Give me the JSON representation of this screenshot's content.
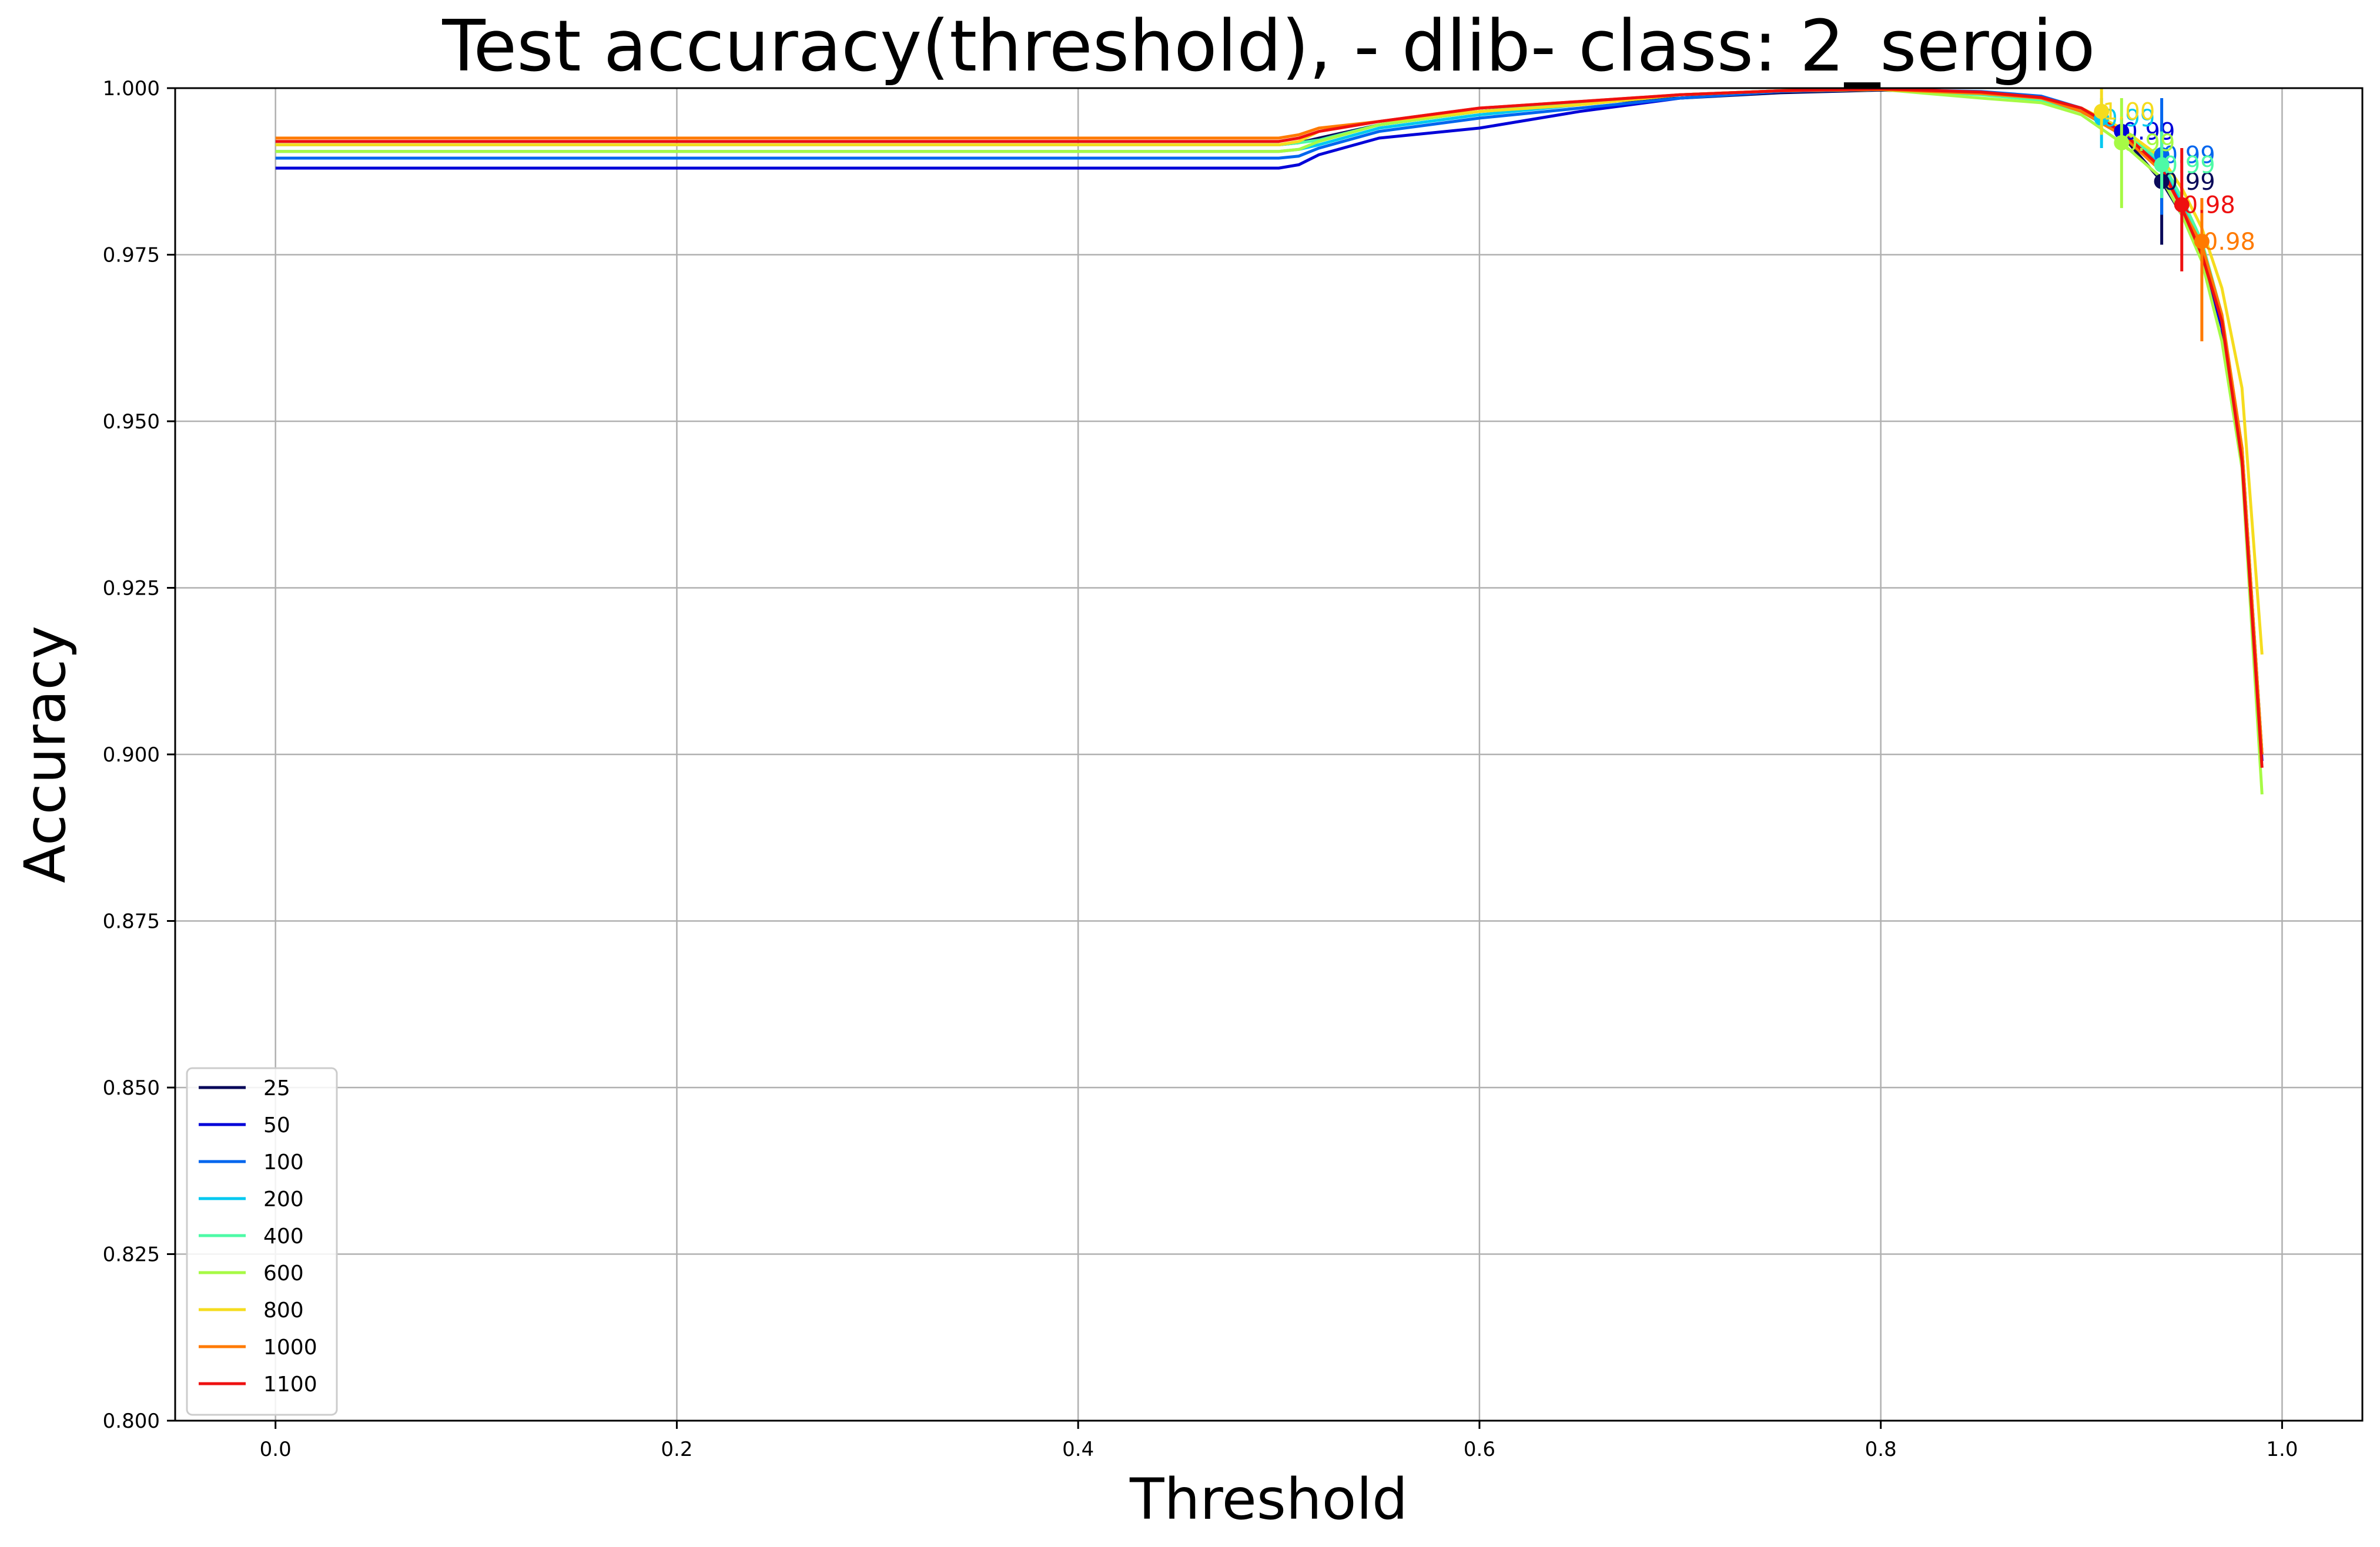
{
  "chart_data": {
    "type": "line",
    "title": "Test accuracy(threshold), - dlib-  class: 2_sergio",
    "xlabel": "Threshold",
    "ylabel": "Accuracy",
    "xlim": [
      -0.05,
      1.04
    ],
    "ylim": [
      0.8,
      1.0
    ],
    "xticks": [
      0.0,
      0.2,
      0.4,
      0.6,
      0.8,
      1.0
    ],
    "xtick_labels": [
      "0.0",
      "0.2",
      "0.4",
      "0.6",
      "0.8",
      "1.0"
    ],
    "yticks": [
      0.8,
      0.825,
      0.85,
      0.875,
      0.9,
      0.925,
      0.95,
      0.975,
      1.0
    ],
    "ytick_labels": [
      "0.800",
      "0.825",
      "0.850",
      "0.875",
      "0.900",
      "0.925",
      "0.950",
      "0.975",
      "1.000"
    ],
    "grid": true,
    "legend_position": "lower-left",
    "x": [
      0.0,
      0.5,
      0.51,
      0.52,
      0.55,
      0.6,
      0.65,
      0.7,
      0.75,
      0.8,
      0.85,
      0.88,
      0.9,
      0.92,
      0.94,
      0.95,
      0.96,
      0.97,
      0.98,
      0.99
    ],
    "series": [
      {
        "name": "25",
        "color": "#0a0a5a",
        "values": [
          0.9915,
          0.9915,
          0.9918,
          0.9925,
          0.9945,
          0.9965,
          0.9978,
          0.9985,
          0.9993,
          0.9997,
          0.9993,
          0.9985,
          0.9965,
          0.993,
          0.986,
          0.981,
          0.975,
          0.965,
          0.946,
          0.9
        ],
        "marker": {
          "x": 0.94,
          "y": 0.986,
          "label": "0.99",
          "err_low": 0.9765,
          "err_high": 0.9945
        }
      },
      {
        "name": "50",
        "color": "#0000d8",
        "values": [
          0.988,
          0.988,
          0.9885,
          0.99,
          0.9925,
          0.994,
          0.9965,
          0.9985,
          0.9995,
          0.9998,
          0.9994,
          0.9987,
          0.997,
          0.9935,
          0.9875,
          0.982,
          0.975,
          0.964,
          0.944,
          0.899
        ],
        "marker": {
          "x": 0.92,
          "y": 0.9935,
          "label": "0.99",
          "err_low": 0.992,
          "err_high": 0.9955
        }
      },
      {
        "name": "100",
        "color": "#0066ee",
        "values": [
          0.9895,
          0.9895,
          0.9898,
          0.991,
          0.9935,
          0.9955,
          0.997,
          0.9985,
          0.9995,
          0.9998,
          0.9995,
          0.9988,
          0.997,
          0.9935,
          0.988,
          0.9825,
          0.976,
          0.965,
          0.945,
          0.9
        ],
        "marker": {
          "x": 0.94,
          "y": 0.99,
          "label": "0.99",
          "err_low": 0.981,
          "err_high": 0.9985
        }
      },
      {
        "name": "200",
        "color": "#00c8f0",
        "values": [
          0.9905,
          0.9905,
          0.9908,
          0.9915,
          0.994,
          0.996,
          0.9975,
          0.999,
          0.9996,
          0.9998,
          0.9993,
          0.9985,
          0.9965,
          0.9935,
          0.9885,
          0.983,
          0.976,
          0.965,
          0.945,
          0.9
        ],
        "marker": {
          "x": 0.91,
          "y": 0.9955,
          "label": "0.99",
          "err_low": 0.991,
          "err_high": 0.9985
        }
      },
      {
        "name": "400",
        "color": "#4dfaa6",
        "values": [
          0.9915,
          0.9915,
          0.9918,
          0.9922,
          0.9945,
          0.9965,
          0.9978,
          0.999,
          0.9996,
          0.9998,
          0.999,
          0.9982,
          0.9965,
          0.9935,
          0.989,
          0.9835,
          0.977,
          0.966,
          0.946,
          0.9
        ],
        "marker": {
          "x": 0.94,
          "y": 0.9885,
          "label": "0.99",
          "err_low": 0.9835,
          "err_high": 0.9935
        }
      },
      {
        "name": "600",
        "color": "#a6fa45",
        "values": [
          0.9905,
          0.9905,
          0.9908,
          0.992,
          0.9945,
          0.9965,
          0.9975,
          0.999,
          0.9996,
          0.9998,
          0.9985,
          0.9978,
          0.996,
          0.9918,
          0.9865,
          0.981,
          0.974,
          0.962,
          0.943,
          0.894
        ],
        "marker": {
          "x": 0.92,
          "y": 0.9918,
          "label": "0.99",
          "err_low": 0.982,
          "err_high": 0.9985
        }
      },
      {
        "name": "800",
        "color": "#f5dc1e",
        "values": [
          0.9915,
          0.9915,
          0.992,
          0.9935,
          0.995,
          0.9965,
          0.9975,
          0.999,
          0.9996,
          0.9998,
          0.9992,
          0.9985,
          0.997,
          0.994,
          0.9895,
          0.985,
          0.979,
          0.97,
          0.955,
          0.915
        ],
        "marker": {
          "x": 0.91,
          "y": 0.9965,
          "label": "1.00",
          "err_low": 0.993,
          "err_high": 1.0
        }
      },
      {
        "name": "1000",
        "color": "#ff7a00",
        "values": [
          0.9925,
          0.9925,
          0.993,
          0.994,
          0.995,
          0.997,
          0.998,
          0.999,
          0.9996,
          0.9998,
          0.9992,
          0.9985,
          0.9965,
          0.993,
          0.9875,
          0.982,
          0.9765,
          0.966,
          0.946,
          0.9
        ],
        "marker": {
          "x": 0.96,
          "y": 0.977,
          "label": "0.98",
          "err_low": 0.962,
          "err_high": 0.9835
        }
      },
      {
        "name": "1100",
        "color": "#ee1010",
        "values": [
          0.992,
          0.992,
          0.9925,
          0.9935,
          0.995,
          0.997,
          0.998,
          0.999,
          0.9996,
          0.9999,
          0.9994,
          0.9986,
          0.997,
          0.9935,
          0.988,
          0.982,
          0.975,
          0.965,
          0.944,
          0.898
        ],
        "marker": {
          "x": 0.95,
          "y": 0.9825,
          "label": "0.98",
          "err_low": 0.9725,
          "err_high": 0.991
        }
      }
    ]
  }
}
